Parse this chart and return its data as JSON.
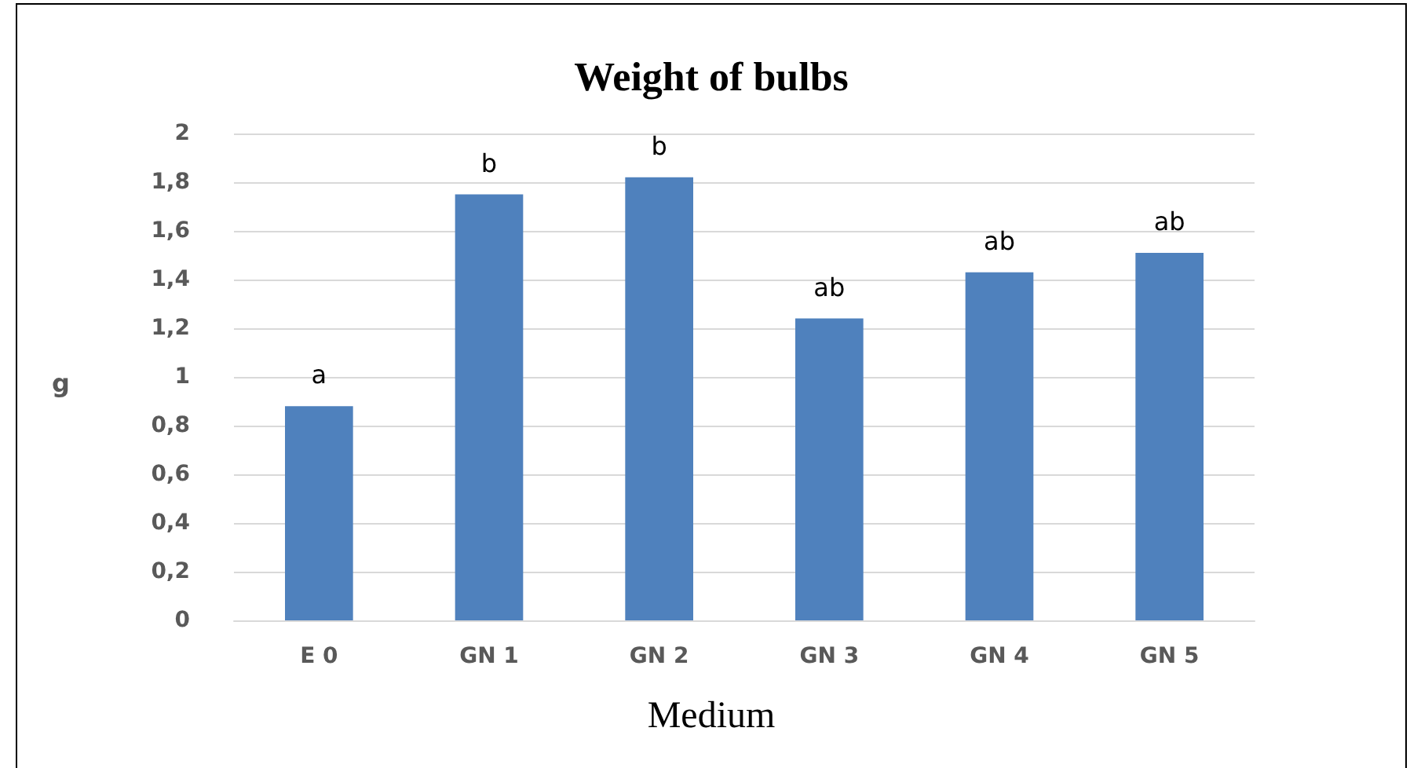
{
  "chart_data": {
    "type": "bar",
    "title": "Weight of bulbs",
    "xlabel": "Medium",
    "ylabel": "g",
    "categories": [
      "E 0",
      "GN 1",
      "GN 2",
      "GN 3",
      "GN 4",
      "GN 5"
    ],
    "values": [
      0.88,
      1.75,
      1.82,
      1.24,
      1.43,
      1.51
    ],
    "color": "#4f81bd",
    "ylim": [
      0,
      2
    ],
    "yticks": [
      0,
      {
        "value": 0.2,
        "label": "0,2"
      },
      {
        "value": 0.4,
        "label": "0,4"
      },
      {
        "value": 0.6,
        "label": "0,6"
      },
      {
        "value": 0.8,
        "label": "0,8"
      },
      1,
      {
        "value": 1.2,
        "label": "1,2"
      },
      {
        "value": 1.4,
        "label": "1,4"
      },
      {
        "value": 1.6,
        "label": "1,6"
      },
      {
        "value": 1.8,
        "label": "1,8"
      },
      2
    ],
    "grid": "y",
    "annotations": [
      {
        "text": "a",
        "x": "E 0",
        "y": 0.88
      },
      {
        "text": "b",
        "x": "GN 1",
        "y": 1.75
      },
      {
        "text": "b",
        "x": "GN 2",
        "y": 1.82
      },
      {
        "text": "ab",
        "x": "GN 3",
        "y": 1.24
      },
      {
        "text": "ab",
        "x": "GN 4",
        "y": 1.43
      },
      {
        "text": "ab",
        "x": "GN 5",
        "y": 1.51
      }
    ]
  }
}
